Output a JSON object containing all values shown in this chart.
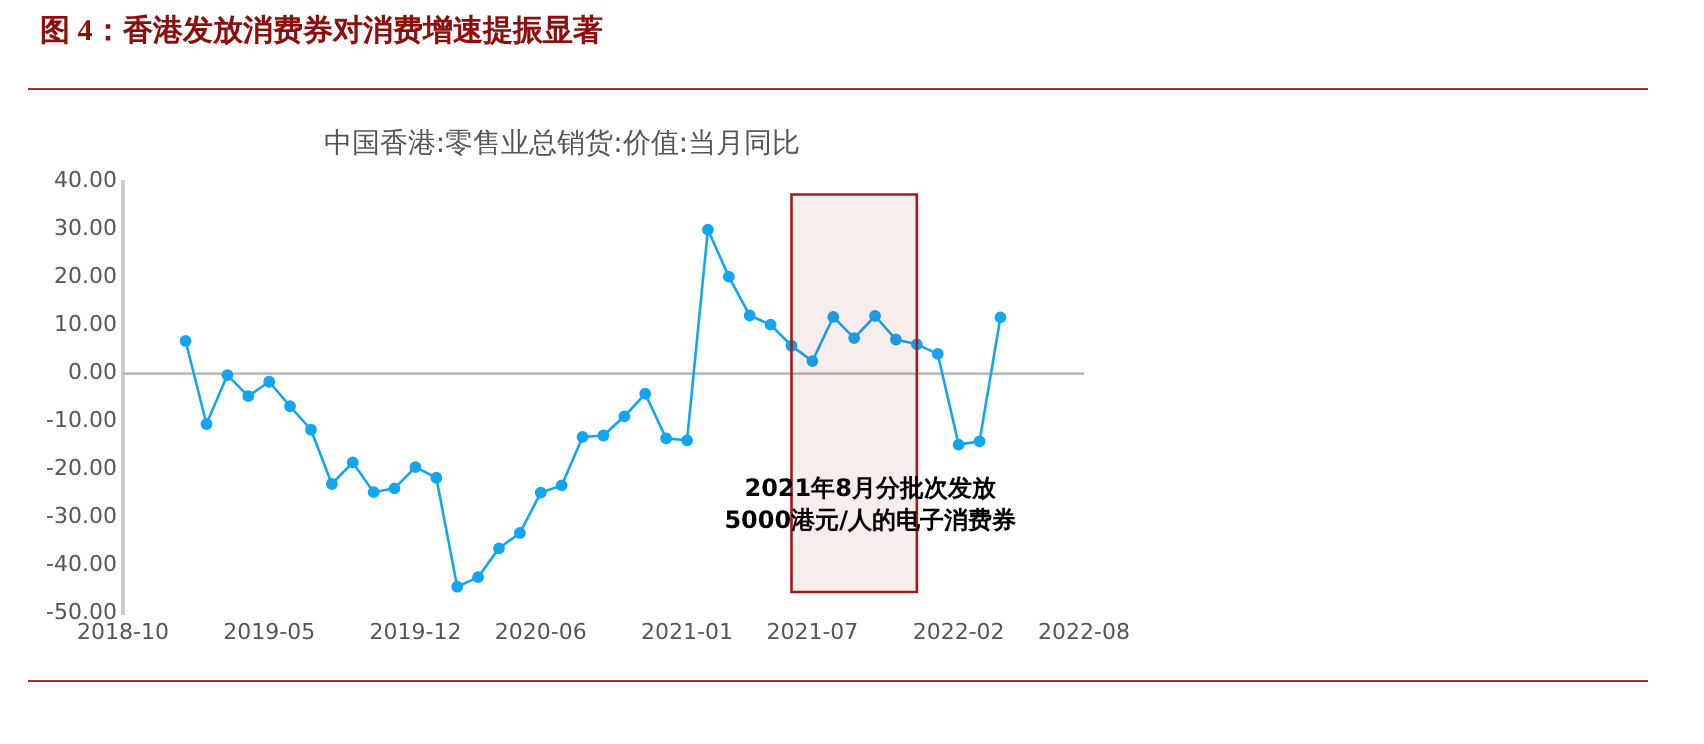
{
  "chart_data": {
    "type": "line",
    "title": "图 4：香港发放消费券对消费增速提振显著",
    "subtitle": "中国香港:零售业总销货:价值:当月同比",
    "x": [
      "2019-01",
      "2019-02",
      "2019-03",
      "2019-04",
      "2019-05",
      "2019-06",
      "2019-07",
      "2019-08",
      "2019-09",
      "2019-10",
      "2019-11",
      "2019-12",
      "2020-01",
      "2020-02",
      "2020-03",
      "2020-04",
      "2020-05",
      "2020-06",
      "2020-07",
      "2020-08",
      "2020-09",
      "2020-10",
      "2020-11",
      "2020-12",
      "2021-01",
      "2021-02",
      "2021-03",
      "2021-04",
      "2021-05",
      "2021-06",
      "2021-07",
      "2021-08",
      "2021-09",
      "2021-10",
      "2021-11",
      "2021-12",
      "2022-01",
      "2022-02",
      "2022-03",
      "2022-04"
    ],
    "series": [
      {
        "color": "#14a5f0",
        "values": [
          6.8,
          -10.5,
          -0.3,
          -4.7,
          -1.7,
          -6.8,
          -11.7,
          -23.0,
          -18.5,
          -24.7,
          -23.9,
          -19.5,
          -21.7,
          -44.4,
          -42.4,
          -36.4,
          -33.2,
          -24.8,
          -23.3,
          -13.2,
          -12.9,
          -8.9,
          -4.2,
          -13.5,
          -13.9,
          30.0,
          20.2,
          12.1,
          10.2,
          5.8,
          2.6,
          11.8,
          7.4,
          12.0,
          7.1,
          6.1,
          4.1,
          -14.8,
          -14.1,
          11.7
        ]
      }
    ],
    "xlim": [
      "2018-10",
      "2022-08"
    ],
    "xticks": [
      "2018-10",
      "2019-05",
      "2019-12",
      "2020-06",
      "2021-01",
      "2021-07",
      "2022-02",
      "2022-08"
    ],
    "ylim": [
      -50,
      40
    ],
    "yticks": [
      {
        "value": -50,
        "label": "-50.00"
      },
      {
        "value": -40,
        "label": "-40.00"
      },
      {
        "value": -30,
        "label": "-30.00"
      },
      {
        "value": -20,
        "label": "-20.00"
      },
      {
        "value": -10,
        "label": "-10.00"
      },
      {
        "value": 0,
        "label": "0.00"
      },
      {
        "value": 10,
        "label": "10.00"
      },
      {
        "value": 20,
        "label": "20.00"
      },
      {
        "value": 30,
        "label": "30.00"
      },
      {
        "value": 40,
        "label": "40.00"
      }
    ],
    "bands": [
      {
        "axis": "x",
        "from": "2021-06",
        "to": "2021-12",
        "label": "2021年8月分批次发放\n5000港元/人的电子消费券",
        "color": "#a01c1c"
      }
    ],
    "ref_lines": [
      {
        "axis": "y",
        "value": 0,
        "color": "#bbbbbb"
      }
    ],
    "marker": "circle",
    "line_style": "solid",
    "grid": false,
    "legend": false
  }
}
